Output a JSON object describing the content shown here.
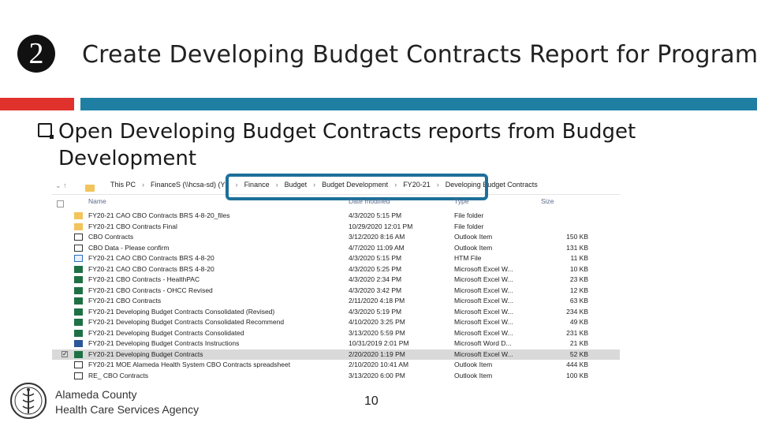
{
  "slide": {
    "step_number": "2",
    "title": "Create Developing Budget Contracts Report for Programs",
    "bullet": "Open Developing Budget Contracts reports from Budget Development",
    "page_number": "10",
    "org_line1": "Alameda County",
    "org_line2": "Health Care Services Agency",
    "colors": {
      "accent_red": "#e0312c",
      "accent_teal": "#1f7fa3",
      "highlight": "#1d6f9a"
    }
  },
  "explorer": {
    "nav": {
      "back_icon": "back-arrow-icon",
      "up_icon": "up-arrow-icon"
    },
    "breadcrumbs": [
      "This PC",
      "FinanceS (\\\\hcsa-sd) (Y:)",
      "Finance",
      "Budget",
      "Budget Development",
      "FY20-21",
      "Developing Budget Contracts"
    ],
    "columns": {
      "name": "Name",
      "date": "Date modified",
      "type": "Type",
      "size": "Size"
    },
    "files": [
      {
        "name": "FY20-21 CAO CBO Contracts BRS 4-8-20_files",
        "date": "4/3/2020 5:15 PM",
        "type": "File folder",
        "size": "",
        "icon": "folder"
      },
      {
        "name": "FY20-21 CBO Contracts Final",
        "date": "10/29/2020 12:01 PM",
        "type": "File folder",
        "size": "",
        "icon": "folder"
      },
      {
        "name": "CBO Contracts",
        "date": "3/12/2020 8:16 AM",
        "type": "Outlook Item",
        "size": "150 KB",
        "icon": "mail"
      },
      {
        "name": "CBO Data - Please confirm",
        "date": "4/7/2020 11:09 AM",
        "type": "Outlook Item",
        "size": "131 KB",
        "icon": "mail"
      },
      {
        "name": "FY20-21 CAO CBO Contracts BRS 4-8-20",
        "date": "4/3/2020 5:15 PM",
        "type": "HTM File",
        "size": "11 KB",
        "icon": "html"
      },
      {
        "name": "FY20-21 CAO CBO Contracts BRS 4-8-20",
        "date": "4/3/2020 5:25 PM",
        "type": "Microsoft Excel W...",
        "size": "10 KB",
        "icon": "excel"
      },
      {
        "name": "FY20-21 CBO Contracts - HealthPAC",
        "date": "4/3/2020 2:34 PM",
        "type": "Microsoft Excel W...",
        "size": "23 KB",
        "icon": "excel"
      },
      {
        "name": "FY20-21 CBO Contracts - OHCC Revised",
        "date": "4/3/2020 3:42 PM",
        "type": "Microsoft Excel W...",
        "size": "12 KB",
        "icon": "excel"
      },
      {
        "name": "FY20-21 CBO Contracts",
        "date": "2/11/2020 4:18 PM",
        "type": "Microsoft Excel W...",
        "size": "63 KB",
        "icon": "excel"
      },
      {
        "name": "FY20-21 Developing Budget Contracts Consolidated (Revised)",
        "date": "4/3/2020 5:19 PM",
        "type": "Microsoft Excel W...",
        "size": "234 KB",
        "icon": "excel"
      },
      {
        "name": "FY20-21 Developing Budget Contracts Consolidated Recommend",
        "date": "4/10/2020 3:25 PM",
        "type": "Microsoft Excel W...",
        "size": "49 KB",
        "icon": "excel"
      },
      {
        "name": "FY20-21 Developing Budget Contracts Consolidated",
        "date": "3/13/2020 5:59 PM",
        "type": "Microsoft Excel W...",
        "size": "231 KB",
        "icon": "excel"
      },
      {
        "name": "FY20-21 Developing Budget Contracts Instructions",
        "date": "10/31/2019 2:01 PM",
        "type": "Microsoft Word D...",
        "size": "21 KB",
        "icon": "word"
      },
      {
        "name": "FY20-21 Developing Budget Contracts",
        "date": "2/20/2020 1:19 PM",
        "type": "Microsoft Excel W...",
        "size": "52 KB",
        "icon": "excel",
        "selected": true
      },
      {
        "name": "FY20-21 MOE Alameda Health System CBO Contracts spreadsheet",
        "date": "2/10/2020 10:41 AM",
        "type": "Outlook Item",
        "size": "444 KB",
        "icon": "mail"
      },
      {
        "name": "RE_ CBO Contracts",
        "date": "3/13/2020 6:00 PM",
        "type": "Outlook Item",
        "size": "100 KB",
        "icon": "mail"
      }
    ]
  }
}
